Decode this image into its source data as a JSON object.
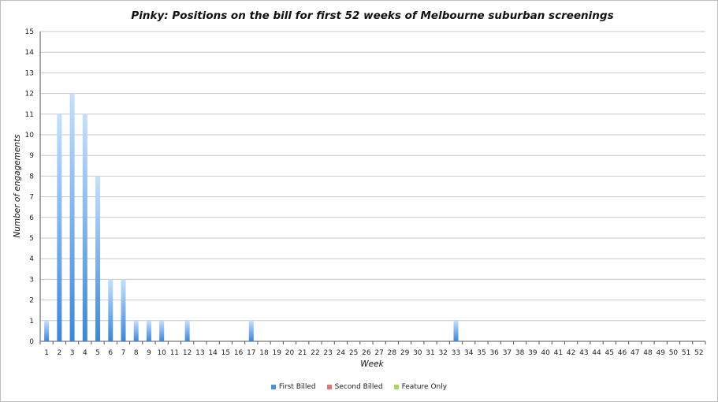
{
  "chart_data": {
    "type": "bar",
    "title": "Pinky: Positions on the bill for first 52 weeks of Melbourne suburban screenings",
    "xlabel": "Week",
    "ylabel": "Number of engagements",
    "ylim": [
      0,
      15
    ],
    "yticks": [
      0,
      1,
      2,
      3,
      4,
      5,
      6,
      7,
      8,
      9,
      10,
      11,
      12,
      13,
      14,
      15
    ],
    "grid": true,
    "legend_position": "bottom",
    "categories": [
      "1",
      "2",
      "3",
      "4",
      "5",
      "6",
      "7",
      "8",
      "9",
      "10",
      "11",
      "12",
      "13",
      "14",
      "15",
      "16",
      "17",
      "18",
      "19",
      "20",
      "21",
      "22",
      "23",
      "24",
      "25",
      "26",
      "27",
      "28",
      "29",
      "30",
      "31",
      "32",
      "33",
      "34",
      "35",
      "36",
      "37",
      "38",
      "39",
      "40",
      "41",
      "42",
      "43",
      "44",
      "45",
      "46",
      "47",
      "48",
      "49",
      "50",
      "51",
      "52"
    ],
    "series": [
      {
        "name": "First Billed",
        "color": "#4a90e2",
        "values": [
          1,
          11,
          12,
          11,
          8,
          3,
          3,
          1,
          1,
          1,
          0,
          1,
          0,
          0,
          0,
          0,
          1,
          0,
          0,
          0,
          0,
          0,
          0,
          0,
          0,
          0,
          0,
          0,
          0,
          0,
          0,
          0,
          1,
          0,
          0,
          0,
          0,
          0,
          0,
          0,
          0,
          0,
          0,
          0,
          0,
          0,
          0,
          0,
          0,
          0,
          0,
          0
        ]
      },
      {
        "name": "Second Billed",
        "color": "#f07070",
        "values": [
          0,
          0,
          0,
          0,
          0,
          0,
          0,
          0,
          0,
          0,
          0,
          0,
          0,
          0,
          0,
          0,
          0,
          0,
          0,
          0,
          0,
          0,
          0,
          0,
          0,
          0,
          0,
          0,
          0,
          0,
          0,
          0,
          0,
          0,
          0,
          0,
          0,
          0,
          0,
          0,
          0,
          0,
          0,
          0,
          0,
          0,
          0,
          0,
          0,
          0,
          0,
          0
        ]
      },
      {
        "name": "Feature Only",
        "color": "#a6d66b",
        "values": [
          0,
          0,
          0,
          0,
          0,
          0,
          0,
          0,
          0,
          0,
          0,
          0,
          0,
          0,
          0,
          0,
          0,
          0,
          0,
          0,
          0,
          0,
          0,
          0,
          0,
          0,
          0,
          0,
          0,
          0,
          0,
          0,
          0,
          0,
          0,
          0,
          0,
          0,
          0,
          0,
          0,
          0,
          0,
          0,
          0,
          0,
          0,
          0,
          0,
          0,
          0,
          0
        ]
      }
    ]
  }
}
